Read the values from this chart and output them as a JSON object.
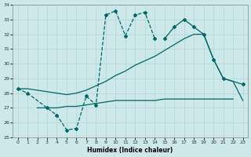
{
  "bg_color": "#cce8e8",
  "grid_color": "#b8d8d8",
  "line_color": "#006666",
  "xlabel": "Humidex (Indice chaleur)",
  "xlim": [
    -0.5,
    23.5
  ],
  "ylim": [
    25,
    34
  ],
  "yticks": [
    25,
    26,
    27,
    28,
    29,
    30,
    31,
    32,
    33,
    34
  ],
  "xticks": [
    0,
    1,
    2,
    3,
    4,
    5,
    6,
    7,
    8,
    9,
    10,
    11,
    12,
    13,
    14,
    15,
    16,
    17,
    18,
    19,
    20,
    21,
    22,
    23
  ],
  "series1_x": [
    0,
    1,
    3,
    4,
    5,
    6,
    7,
    8,
    9,
    10,
    11,
    12,
    13,
    14
  ],
  "series1_y": [
    28.3,
    28.0,
    27.0,
    26.5,
    25.5,
    25.6,
    27.8,
    27.2,
    33.3,
    33.6,
    31.9,
    33.3,
    33.5,
    31.7
  ],
  "series2_x": [
    15,
    16,
    17,
    18,
    19,
    20,
    21,
    23
  ],
  "series2_y": [
    31.7,
    32.5,
    33.0,
    32.5,
    32.0,
    30.3,
    29.0,
    28.6
  ],
  "series3_x": [
    0,
    1,
    2,
    3,
    4,
    5,
    6,
    7,
    8,
    9,
    10,
    11,
    12,
    13,
    14,
    15,
    16,
    17,
    18,
    19,
    20,
    21,
    22,
    23
  ],
  "series3_y": [
    28.3,
    28.3,
    28.2,
    28.1,
    28.0,
    27.9,
    28.0,
    28.2,
    28.5,
    28.8,
    29.2,
    29.5,
    29.9,
    30.2,
    30.5,
    30.9,
    31.3,
    31.7,
    32.0,
    32.0,
    30.3,
    29.0,
    28.8,
    27.5
  ],
  "series4_x": [
    2,
    3,
    4,
    5,
    6,
    7,
    8,
    9,
    10,
    11,
    12,
    13,
    14,
    15,
    16,
    17,
    18,
    19,
    20,
    21,
    22
  ],
  "series4_y": [
    27.0,
    27.0,
    27.0,
    27.1,
    27.1,
    27.2,
    27.3,
    27.4,
    27.5,
    27.5,
    27.5,
    27.5,
    27.5,
    27.6,
    27.6,
    27.6,
    27.6,
    27.6,
    27.6,
    27.6,
    27.6
  ]
}
